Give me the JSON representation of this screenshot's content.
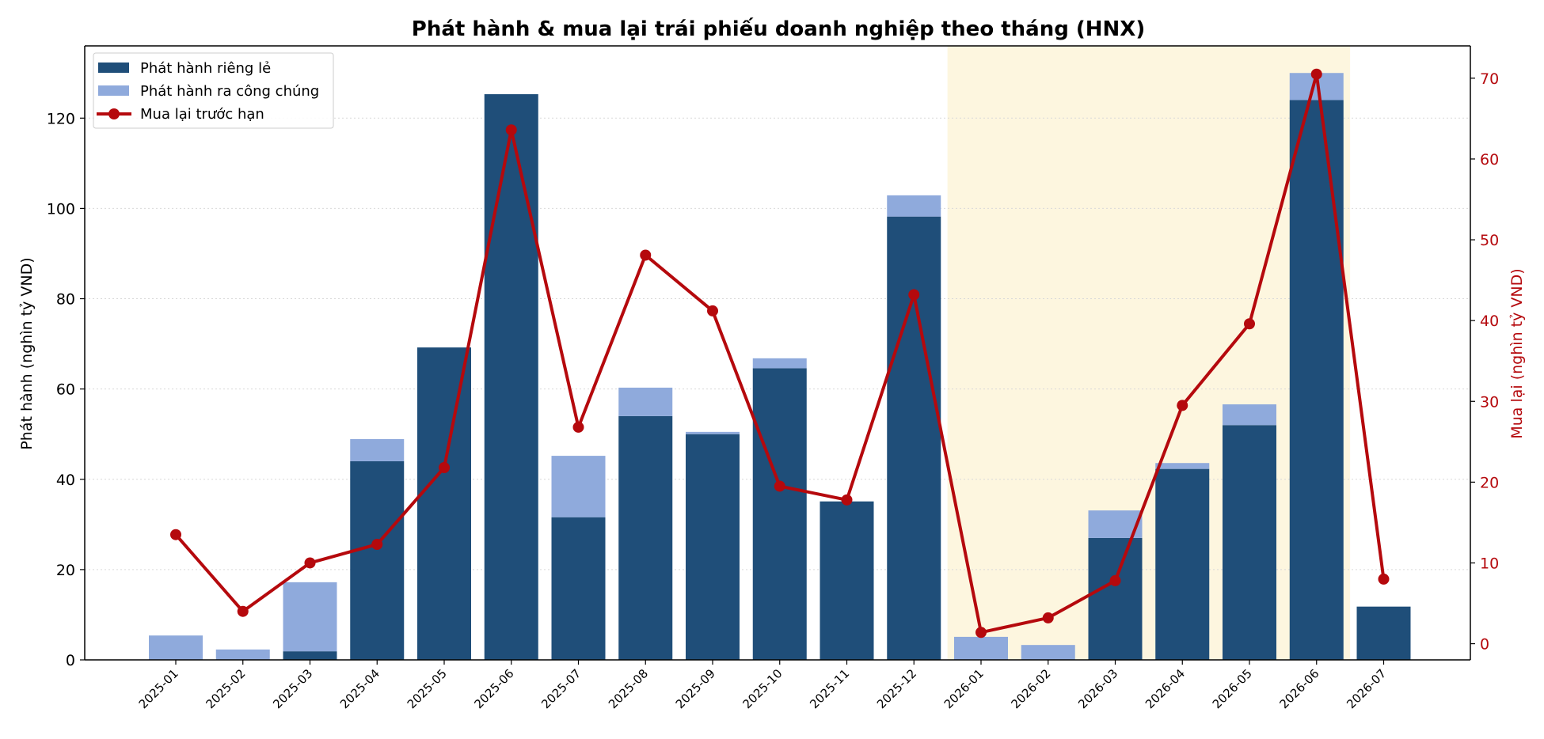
{
  "chart_data": {
    "type": "bar",
    "title": "Phát hành & mua lại trái phiếu doanh nghiệp theo tháng (HNX)",
    "ylabel_left": "Phát hành (nghìn tỷ VND)",
    "ylabel_right": "Mua lại (nghìn tỷ VND)",
    "categories": [
      "2025-01",
      "2025-02",
      "2025-03",
      "2025-04",
      "2025-05",
      "2025-06",
      "2025-07",
      "2025-08",
      "2025-09",
      "2025-10",
      "2025-11",
      "2025-12",
      "2026-01",
      "2026-02",
      "2026-03",
      "2026-04",
      "2026-05",
      "2026-06",
      "2026-07"
    ],
    "series": [
      {
        "name": "Phát hành riêng lẻ",
        "type": "bar",
        "stack": "issuance",
        "axis": "left",
        "color": "#1f4e79",
        "values": [
          0,
          0,
          1.9,
          44.0,
          69.2,
          125.3,
          31.6,
          54.0,
          50.0,
          64.6,
          35.1,
          98.2,
          0,
          0,
          27.0,
          42.3,
          52.0,
          124.0,
          11.8
        ]
      },
      {
        "name": "Phát hành ra công chúng",
        "type": "bar",
        "stack": "issuance",
        "axis": "left",
        "color": "#8faadc",
        "values": [
          5.4,
          2.3,
          15.3,
          4.9,
          0,
          0,
          13.6,
          6.3,
          0.5,
          2.2,
          0,
          4.7,
          5.1,
          3.3,
          6.1,
          1.3,
          4.6,
          6.0,
          0
        ]
      },
      {
        "name": "Mua lại trước hạn",
        "type": "line",
        "axis": "right",
        "color": "#b5090d",
        "values": [
          13.5,
          4.0,
          10.0,
          12.3,
          21.8,
          63.6,
          26.8,
          48.1,
          41.2,
          19.5,
          17.8,
          43.2,
          1.4,
          3.2,
          7.8,
          29.5,
          39.6,
          70.5,
          8.0
        ]
      }
    ],
    "ylim_left": [
      0,
      136
    ],
    "yticks_left": [
      0,
      20,
      40,
      60,
      80,
      100,
      120
    ],
    "ylim_right": [
      -2,
      74
    ],
    "yticks_right": [
      0,
      10,
      20,
      30,
      40,
      50,
      60,
      70
    ],
    "highlight": {
      "from": "2026-01",
      "to": "2026-06",
      "color": "#fdf6df"
    },
    "grid": "y-dotted",
    "legend_position": "top-left"
  }
}
